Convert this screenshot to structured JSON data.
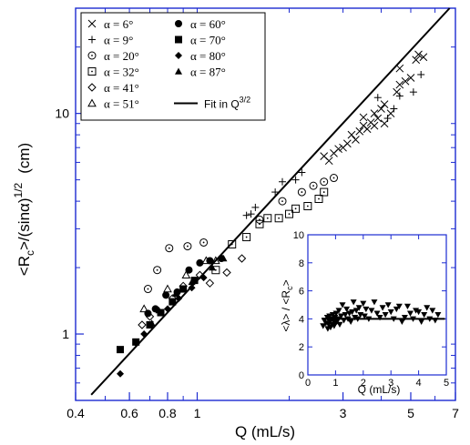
{
  "chart_data": [
    {
      "type": "scatter",
      "xscale": "log",
      "yscale": "log",
      "xlim": [
        0.4,
        7
      ],
      "ylim": [
        0.5,
        30
      ],
      "xlabel": "Q (mL/s)",
      "ylabel_main": "<R",
      "ylabel_sub": "c",
      "ylabel_tail": ">/(sinα)",
      "ylabel_sup": "1/2",
      "ylabel_unit": "(cm)",
      "xticks": [
        0.4,
        0.6,
        0.8,
        1,
        3,
        5,
        7
      ],
      "xtick_labels": [
        "0.4",
        "0.6",
        "0.8",
        "1",
        "3",
        "5",
        "7"
      ],
      "yticks": [
        1,
        10
      ],
      "ytick_labels": [
        "1",
        "10"
      ],
      "legend": {
        "placement": "top-left",
        "entries": [
          {
            "label": "α = 6°",
            "marker": "x"
          },
          {
            "label": "α = 9°",
            "marker": "plus"
          },
          {
            "label": "α = 20°",
            "marker": "circle-dot"
          },
          {
            "label": "α = 32°",
            "marker": "square-dot"
          },
          {
            "label": "α = 41°",
            "marker": "diamond-open"
          },
          {
            "label": "α = 51°",
            "marker": "triangle-open"
          },
          {
            "label": "α = 60°",
            "marker": "circle-filled"
          },
          {
            "label": "α = 70°",
            "marker": "square-filled"
          },
          {
            "label": "α = 80°",
            "marker": "diamond-filled"
          },
          {
            "label": "α = 87°",
            "marker": "triangle-filled"
          },
          {
            "label": "Fit in Q",
            "label_sup": "3/2",
            "marker": "line"
          }
        ]
      },
      "fit": {
        "label": "Fit in Q^3/2",
        "x": [
          0.45,
          6.7
        ],
        "y": [
          0.53,
          30
        ]
      },
      "series": [
        {
          "marker": "x",
          "points": [
            [
              2.6,
              6.4
            ],
            [
              2.7,
              6.1
            ],
            [
              2.8,
              6.6
            ],
            [
              2.9,
              6.9
            ],
            [
              3.0,
              7.0
            ],
            [
              3.1,
              7.3
            ],
            [
              3.2,
              8.0
            ],
            [
              3.3,
              7.6
            ],
            [
              3.4,
              8.3
            ],
            [
              3.5,
              8.8
            ],
            [
              3.5,
              9.6
            ],
            [
              3.6,
              8.5
            ],
            [
              3.7,
              9.1
            ],
            [
              3.8,
              10.0
            ],
            [
              3.9,
              9.5
            ],
            [
              4.0,
              10.5
            ],
            [
              4.1,
              11.0
            ],
            [
              4.3,
              10.0
            ],
            [
              4.5,
              12.5
            ],
            [
              4.6,
              13.5
            ],
            [
              4.6,
              16.0
            ],
            [
              4.8,
              14.0
            ],
            [
              5.0,
              14.5
            ],
            [
              5.2,
              17.5
            ],
            [
              5.3,
              18.5
            ],
            [
              5.5,
              18.0
            ],
            [
              4.1,
              9.0
            ],
            [
              3.8,
              8.8
            ]
          ]
        },
        {
          "marker": "plus",
          "points": [
            [
              1.45,
              3.45
            ],
            [
              1.5,
              3.5
            ],
            [
              1.55,
              3.75
            ],
            [
              1.8,
              4.4
            ],
            [
              1.9,
              4.9
            ],
            [
              2.1,
              5.0
            ],
            [
              2.2,
              5.4
            ],
            [
              4.2,
              9.5
            ],
            [
              4.4,
              10.5
            ],
            [
              4.6,
              12.0
            ],
            [
              5.1,
              12.5
            ],
            [
              5.4,
              15.0
            ],
            [
              3.9,
              11.8
            ]
          ]
        },
        {
          "marker": "circle-dot",
          "points": [
            [
              0.69,
              1.6
            ],
            [
              0.74,
              1.95
            ],
            [
              0.81,
              2.45
            ],
            [
              0.93,
              2.5
            ],
            [
              1.05,
              2.6
            ],
            [
              1.6,
              3.3
            ],
            [
              1.9,
              4.0
            ],
            [
              2.2,
              4.4
            ],
            [
              2.4,
              4.7
            ],
            [
              2.6,
              4.9
            ],
            [
              2.8,
              5.1
            ]
          ]
        },
        {
          "marker": "square-dot",
          "points": [
            [
              1.15,
              1.95
            ],
            [
              1.3,
              2.55
            ],
            [
              1.45,
              2.75
            ],
            [
              1.6,
              3.15
            ],
            [
              1.7,
              3.35
            ],
            [
              1.85,
              3.35
            ],
            [
              2.0,
              3.5
            ],
            [
              2.1,
              3.7
            ],
            [
              2.3,
              3.8
            ],
            [
              2.5,
              4.1
            ],
            [
              2.6,
              4.4
            ]
          ]
        },
        {
          "marker": "diamond-open",
          "points": [
            [
              0.66,
              1.1
            ],
            [
              0.7,
              1.2
            ],
            [
              0.83,
              1.45
            ],
            [
              0.9,
              1.65
            ],
            [
              1.02,
              1.85
            ],
            [
              1.1,
              1.7
            ],
            [
              1.25,
              1.9
            ],
            [
              1.4,
              2.2
            ]
          ]
        },
        {
          "marker": "triangle-open",
          "points": [
            [
              0.67,
              1.3
            ],
            [
              0.8,
              1.6
            ],
            [
              0.92,
              1.85
            ],
            [
              1.07,
              2.15
            ],
            [
              1.15,
              2.15
            ]
          ]
        },
        {
          "marker": "circle-filled",
          "points": [
            [
              0.69,
              1.24
            ],
            [
              0.73,
              1.3
            ],
            [
              0.79,
              1.5
            ],
            [
              0.86,
              1.55
            ],
            [
              0.94,
              1.95
            ],
            [
              1.02,
              2.1
            ],
            [
              1.1,
              2.15
            ],
            [
              1.2,
              2.2
            ]
          ]
        },
        {
          "marker": "square-filled",
          "points": [
            [
              0.56,
              0.85
            ],
            [
              0.63,
              0.92
            ],
            [
              0.7,
              1.1
            ],
            [
              0.76,
              1.25
            ],
            [
              0.83,
              1.4
            ],
            [
              0.9,
              1.6
            ],
            [
              0.98,
              1.75
            ]
          ]
        },
        {
          "marker": "diamond-filled",
          "points": [
            [
              0.56,
              0.66
            ],
            [
              0.63,
              0.91
            ],
            [
              0.67,
              1.0
            ],
            [
              0.8,
              1.3
            ],
            [
              0.87,
              1.45
            ],
            [
              0.96,
              1.62
            ],
            [
              1.05,
              1.8
            ]
          ]
        },
        {
          "marker": "triangle-filled",
          "points": [
            [
              0.71,
              1.12
            ],
            [
              0.75,
              1.28
            ],
            [
              0.85,
              1.52
            ],
            [
              0.96,
              1.72
            ],
            [
              1.12,
              2.0
            ],
            [
              1.22,
              2.2
            ]
          ]
        }
      ]
    },
    {
      "type": "scatter",
      "placement": "inset-bottom-right",
      "xscale": "linear",
      "yscale": "linear",
      "xlim": [
        0,
        5
      ],
      "ylim": [
        0,
        10
      ],
      "xlabel": "Q (mL/s)",
      "ylabel": "<λ> / <R",
      "ylabel_sub": "c",
      "ylabel_end": ">",
      "xticks": [
        0,
        1,
        2,
        3,
        4,
        5
      ],
      "xtick_labels": [
        "0",
        "1",
        "2",
        "3",
        "4",
        "5"
      ],
      "yticks": [
        0,
        2,
        4,
        6,
        8,
        10
      ],
      "ytick_labels": [
        "0",
        "2",
        "4",
        "6",
        "8",
        "10"
      ],
      "hline": 4.0,
      "series": [
        {
          "marker": "triangle-down-filled",
          "points": [
            [
              0.55,
              3.5
            ],
            [
              0.6,
              3.9
            ],
            [
              0.65,
              3.7
            ],
            [
              0.7,
              4.1
            ],
            [
              0.72,
              3.3
            ],
            [
              0.75,
              3.6
            ],
            [
              0.78,
              4.2
            ],
            [
              0.8,
              3.8
            ],
            [
              0.82,
              3.4
            ],
            [
              0.85,
              4.0
            ],
            [
              0.88,
              3.6
            ],
            [
              0.9,
              4.3
            ],
            [
              0.92,
              3.9
            ],
            [
              0.95,
              3.5
            ],
            [
              0.98,
              4.1
            ],
            [
              1.0,
              3.7
            ],
            [
              1.02,
              4.4
            ],
            [
              1.05,
              3.8
            ],
            [
              1.1,
              4.0
            ],
            [
              1.12,
              4.6
            ],
            [
              1.15,
              3.6
            ],
            [
              1.2,
              4.2
            ],
            [
              1.25,
              5.0
            ],
            [
              1.3,
              3.9
            ],
            [
              1.35,
              4.3
            ],
            [
              1.4,
              4.7
            ],
            [
              1.45,
              4.0
            ],
            [
              1.5,
              4.4
            ],
            [
              1.55,
              3.8
            ],
            [
              1.6,
              4.5
            ],
            [
              1.65,
              5.2
            ],
            [
              1.7,
              4.1
            ],
            [
              1.75,
              4.6
            ],
            [
              1.8,
              4.0
            ],
            [
              1.85,
              4.8
            ],
            [
              1.9,
              4.3
            ],
            [
              2.0,
              5.1
            ],
            [
              2.05,
              4.2
            ],
            [
              2.1,
              4.7
            ],
            [
              2.2,
              4.0
            ],
            [
              2.3,
              4.6
            ],
            [
              2.4,
              5.2
            ],
            [
              2.5,
              4.4
            ],
            [
              2.6,
              4.1
            ],
            [
              2.7,
              4.8
            ],
            [
              2.8,
              4.3
            ],
            [
              2.9,
              5.0
            ],
            [
              3.0,
              4.5
            ],
            [
              3.1,
              4.0
            ],
            [
              3.2,
              4.7
            ],
            [
              3.3,
              4.9
            ],
            [
              3.4,
              3.8
            ],
            [
              3.5,
              4.1
            ],
            [
              3.6,
              4.9
            ],
            [
              3.7,
              4.4
            ],
            [
              3.8,
              4.0
            ],
            [
              3.9,
              4.6
            ],
            [
              4.0,
              4.5
            ],
            [
              4.1,
              3.8
            ],
            [
              4.2,
              4.3
            ],
            [
              4.3,
              4.8
            ],
            [
              4.4,
              4.0
            ],
            [
              4.5,
              4.6
            ],
            [
              4.6,
              3.9
            ],
            [
              4.7,
              4.3
            ]
          ]
        }
      ]
    }
  ]
}
